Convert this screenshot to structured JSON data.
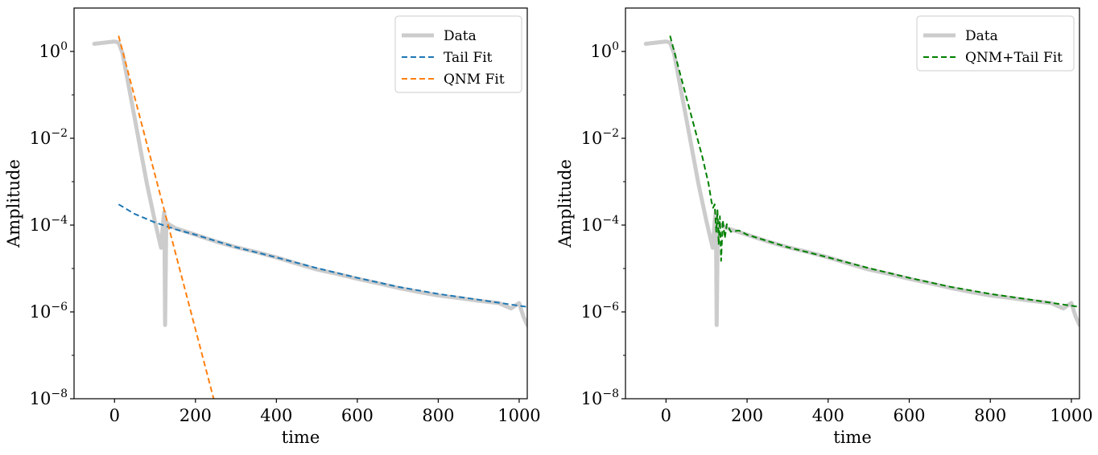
{
  "chart_data": [
    {
      "type": "line",
      "xlabel": "time",
      "ylabel": "Amplitude",
      "xlim": [
        -100,
        1020
      ],
      "ylim": [
        1e-08,
        10
      ],
      "yscale": "log",
      "x_ticks": [
        0,
        200,
        400,
        600,
        800,
        1000
      ],
      "y_ticks": [
        {
          "base": "10",
          "exp": "0",
          "value": 1
        },
        {
          "base": "10",
          "exp": "−2",
          "value": 0.01
        },
        {
          "base": "10",
          "exp": "−4",
          "value": 0.0001
        },
        {
          "base": "10",
          "exp": "−6",
          "value": 1e-06
        },
        {
          "base": "10",
          "exp": "−8",
          "value": 1e-08
        }
      ],
      "legend_position": "top-right",
      "series": [
        {
          "name": "Data",
          "color": "#cccccc",
          "style": "solid",
          "x": [
            -50,
            0,
            10,
            20,
            40,
            60,
            80,
            100,
            115,
            120,
            123,
            125,
            128,
            130,
            150,
            200,
            250,
            300,
            350,
            400,
            450,
            500,
            550,
            600,
            650,
            700,
            750,
            800,
            850,
            900,
            950,
            980,
            1000,
            1010,
            1020
          ],
          "y": [
            1.5,
            1.7,
            1.6,
            0.9,
            0.09,
            0.009,
            0.0009,
            0.00012,
            3e-05,
            0.00012,
            0.0002,
            5e-07,
            0.00012,
            0.00011,
            8.5e-05,
            6e-05,
            4.2e-05,
            3.1e-05,
            2.4e-05,
            1.8e-05,
            1.3e-05,
            9.5e-06,
            7.5e-06,
            5.8e-06,
            4.6e-06,
            3.6e-06,
            2.9e-06,
            2.4e-06,
            2.1e-06,
            1.8e-06,
            1.6e-06,
            1.2e-06,
            1.6e-06,
            8e-07,
            5e-07
          ]
        },
        {
          "name": "Tail Fit",
          "color": "#1f77b4",
          "style": "dashed",
          "x": [
            10,
            50,
            100,
            150,
            200,
            300,
            400,
            500,
            600,
            700,
            800,
            900,
            1020
          ],
          "y": [
            0.0003,
            0.00018,
            0.000115,
            8e-05,
            6e-05,
            3.1e-05,
            1.8e-05,
            1.02e-05,
            6.1e-06,
            3.8e-06,
            2.6e-06,
            1.9e-06,
            1.3e-06
          ]
        },
        {
          "name": "QNM Fit",
          "color": "#ff7f0e",
          "style": "dashed",
          "x": [
            10,
            245
          ],
          "y": [
            2.3,
            1e-08
          ]
        }
      ]
    },
    {
      "type": "line",
      "xlabel": "time",
      "ylabel": "Amplitude",
      "xlim": [
        -100,
        1020
      ],
      "ylim": [
        1e-08,
        10
      ],
      "yscale": "log",
      "x_ticks": [
        0,
        200,
        400,
        600,
        800,
        1000
      ],
      "y_ticks": [
        {
          "base": "10",
          "exp": "0",
          "value": 1
        },
        {
          "base": "10",
          "exp": "−2",
          "value": 0.01
        },
        {
          "base": "10",
          "exp": "−4",
          "value": 0.0001
        },
        {
          "base": "10",
          "exp": "−6",
          "value": 1e-06
        },
        {
          "base": "10",
          "exp": "−8",
          "value": 1e-08
        }
      ],
      "legend_position": "top-right",
      "series": [
        {
          "name": "Data",
          "color": "#cccccc",
          "style": "solid",
          "x": [
            -50,
            0,
            10,
            20,
            40,
            60,
            80,
            100,
            115,
            120,
            123,
            125,
            128,
            130,
            150,
            200,
            250,
            300,
            350,
            400,
            450,
            500,
            550,
            600,
            650,
            700,
            750,
            800,
            850,
            900,
            950,
            980,
            1000,
            1010,
            1020
          ],
          "y": [
            1.5,
            1.7,
            1.6,
            0.9,
            0.09,
            0.009,
            0.0009,
            0.00012,
            3e-05,
            0.00012,
            0.0002,
            5e-07,
            0.00012,
            0.00011,
            8.5e-05,
            6e-05,
            4.2e-05,
            3.1e-05,
            2.4e-05,
            1.8e-05,
            1.3e-05,
            9.5e-06,
            7.5e-06,
            5.8e-06,
            4.6e-06,
            3.6e-06,
            2.9e-06,
            2.4e-06,
            2.1e-06,
            1.8e-06,
            1.6e-06,
            1.2e-06,
            1.6e-06,
            8e-07,
            5e-07
          ]
        },
        {
          "name": "QNM+Tail Fit",
          "color": "#008000",
          "style": "dashed",
          "x": [
            10,
            30,
            50,
            70,
            90,
            105,
            112,
            116,
            120,
            124,
            127,
            130,
            133,
            136,
            140,
            145,
            150,
            160,
            180,
            200,
            300,
            400,
            500,
            600,
            700,
            800,
            900,
            1020
          ],
          "y": [
            2.3,
            0.45,
            0.09,
            0.018,
            0.0036,
            0.0009,
            0.00035,
            0.00025,
            0.0003,
            7e-05,
            0.00022,
            3.5e-05,
            0.00016,
            1.5e-05,
            0.00013,
            5e-05,
            0.000105,
            7e-05,
            7.5e-05,
            6e-05,
            3.1e-05,
            1.8e-05,
            1.02e-05,
            6.1e-06,
            3.8e-06,
            2.6e-06,
            1.9e-06,
            1.3e-06
          ]
        }
      ]
    }
  ]
}
